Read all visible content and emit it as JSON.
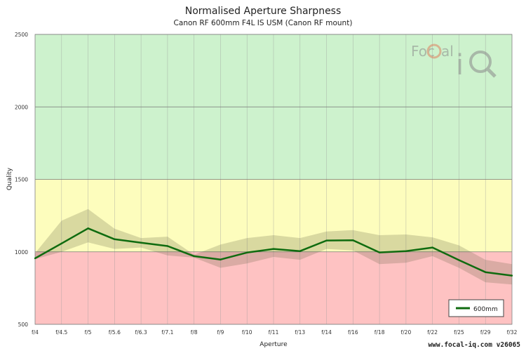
{
  "title": "Normalised Aperture Sharpness",
  "subtitle": "Canon RF 600mm F4L IS USM (Canon RF mount)",
  "watermark": "www.focal-iq.com v26065",
  "logo": {
    "text_left": "Foc",
    "text_c": "C",
    "text_right": "al",
    "iq": "iQ"
  },
  "colors": {
    "zone_high": "#cdf2cd",
    "zone_mid": "#fdfdbd",
    "zone_low": "#fec2c2",
    "line": "#0f6b0f",
    "band": "rgba(90,90,60,0.22)",
    "grid": "#9a9a9a"
  },
  "chart_data": {
    "type": "line",
    "title": "Normalised Aperture Sharpness",
    "subtitle": "Canon RF 600mm F4L IS USM (Canon RF mount)",
    "xlabel": "Aperture",
    "ylabel": "Quality",
    "ylim": [
      500,
      2500
    ],
    "yticks": [
      500,
      1000,
      1500,
      2000,
      2500
    ],
    "grid": true,
    "legend_position": "bottom-right",
    "zones": [
      {
        "from": 500,
        "to": 1000,
        "color": "#fec2c2"
      },
      {
        "from": 1000,
        "to": 1500,
        "color": "#fdfdbd"
      },
      {
        "from": 1500,
        "to": 2500,
        "color": "#cdf2cd"
      }
    ],
    "categories": [
      "f/4",
      "f/4.5",
      "f/5",
      "f/5.6",
      "f/6.3",
      "f/7.1",
      "f/8",
      "f/9",
      "f/10",
      "f/11",
      "f/13",
      "f/14",
      "f/16",
      "f/18",
      "f/20",
      "f/22",
      "f/25",
      "f/29",
      "f/32"
    ],
    "series": [
      {
        "name": "600mm",
        "color": "#0f6b0f",
        "values": [
          955,
          1058,
          1162,
          1087,
          1063,
          1040,
          970,
          947,
          995,
          1020,
          1005,
          1078,
          1080,
          996,
          1005,
          1030,
          943,
          860,
          836
        ],
        "upper": [
          990,
          1215,
          1295,
          1160,
          1095,
          1105,
          980,
          1050,
          1095,
          1115,
          1095,
          1140,
          1150,
          1115,
          1120,
          1100,
          1045,
          945,
          915
        ],
        "lower": [
          950,
          1000,
          1065,
          1020,
          1030,
          975,
          960,
          890,
          920,
          965,
          945,
          1020,
          1010,
          915,
          925,
          970,
          890,
          790,
          775
        ]
      }
    ]
  }
}
